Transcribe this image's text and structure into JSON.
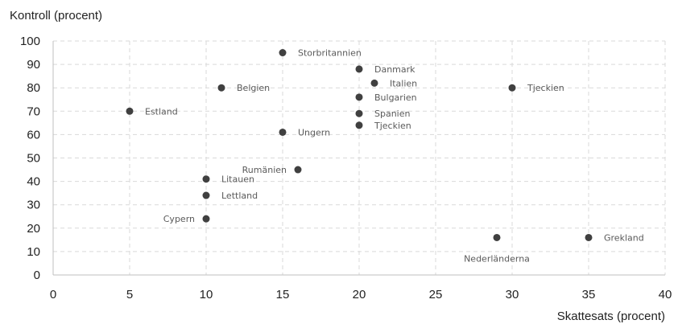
{
  "chart_data": {
    "type": "scatter",
    "xlabel": "Skattesats (procent)",
    "ylabel": "Kontroll (procent)",
    "xlim": [
      0,
      40
    ],
    "ylim": [
      0,
      100
    ],
    "xticks": [
      0,
      5,
      10,
      15,
      20,
      25,
      30,
      35,
      40
    ],
    "yticks": [
      0,
      10,
      20,
      30,
      40,
      50,
      60,
      70,
      80,
      90,
      100
    ],
    "grid": true,
    "marker_color": "#404040",
    "points": [
      {
        "label": "Storbritannien",
        "x": 15,
        "y": 95,
        "label_pos": "right"
      },
      {
        "label": "Danmark",
        "x": 20,
        "y": 88,
        "label_pos": "right"
      },
      {
        "label": "Italien",
        "x": 21,
        "y": 82,
        "label_pos": "right"
      },
      {
        "label": "Belgien",
        "x": 11,
        "y": 80,
        "label_pos": "right"
      },
      {
        "label": "Tjeckien",
        "x": 30,
        "y": 80,
        "label_pos": "right"
      },
      {
        "label": "Bulgarien",
        "x": 20,
        "y": 76,
        "label_pos": "right"
      },
      {
        "label": "Estland",
        "x": 5,
        "y": 70,
        "label_pos": "right"
      },
      {
        "label": "Spanien",
        "x": 20,
        "y": 69,
        "label_pos": "right"
      },
      {
        "label": "Tjeckien",
        "x": 20,
        "y": 64,
        "label_pos": "right"
      },
      {
        "label": "Ungern",
        "x": 15,
        "y": 61,
        "label_pos": "right"
      },
      {
        "label": "Rumänien",
        "x": 16,
        "y": 45,
        "label_pos": "left"
      },
      {
        "label": "Litauen",
        "x": 10,
        "y": 41,
        "label_pos": "right"
      },
      {
        "label": "Lettland",
        "x": 10,
        "y": 34,
        "label_pos": "right"
      },
      {
        "label": "Cypern",
        "x": 10,
        "y": 24,
        "label_pos": "left"
      },
      {
        "label": "Nederländerna",
        "x": 29,
        "y": 16,
        "label_pos": "below"
      },
      {
        "label": "Grekland",
        "x": 35,
        "y": 16,
        "label_pos": "right"
      }
    ]
  }
}
